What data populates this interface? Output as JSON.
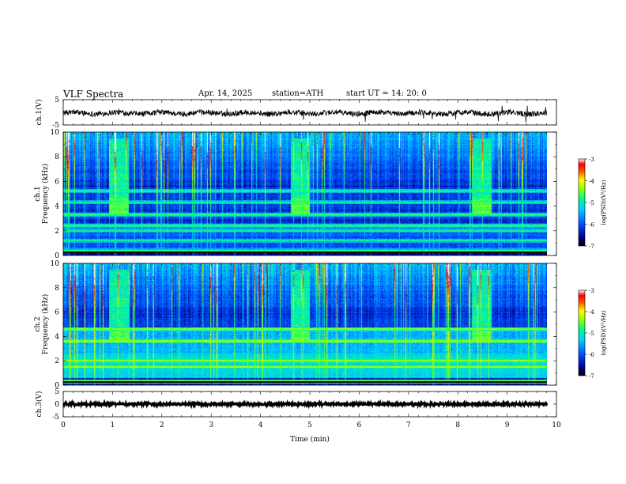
{
  "header": {
    "title": "VLF  Spectra",
    "date": "Apr. 14, 2025",
    "station": "station=ATH",
    "start_ut": "start  UT  =   14: 20: 0"
  },
  "chart_data": {
    "type": "heatmap",
    "xlabel": "Time  (min)",
    "xlim": [
      0,
      10
    ],
    "xticks": [
      "0",
      "1",
      "2",
      "3",
      "4",
      "5",
      "6",
      "7",
      "8",
      "9",
      "10"
    ],
    "panels": [
      {
        "id": "ch1-waveform",
        "type": "line",
        "ylabel": "ch.1(V)",
        "ylim": [
          -5,
          5
        ],
        "yticks": [
          "5",
          "-5"
        ],
        "color": "#000000"
      },
      {
        "id": "ch1-spectrogram",
        "type": "heatmap",
        "ylabel_line1": "ch.1",
        "ylabel_line2": "Frequency  (kHz)",
        "ylim": [
          0,
          10
        ],
        "yticks": [
          "0",
          "2",
          "4",
          "6",
          "8",
          "10"
        ],
        "colorbar": {
          "label": "log(PSD)(V²/Hz)",
          "range": [
            -7,
            -3
          ],
          "ticks": [
            "-3",
            "-4",
            "-5",
            "-6",
            "-7"
          ]
        },
        "bursts": [
          {
            "t_start": 0.95,
            "t_end": 1.35,
            "f_low": 3.4,
            "f_high": 4.6
          },
          {
            "t_start": 4.7,
            "t_end": 5.1,
            "f_low": 3.4,
            "f_high": 4.6
          },
          {
            "t_start": 8.45,
            "t_end": 8.85,
            "f_low": 3.4,
            "f_high": 4.6
          }
        ],
        "bands_khz": [
          0.4,
          1.2,
          2.0,
          2.4,
          3.3,
          4.3,
          5.2
        ]
      },
      {
        "id": "ch2-spectrogram",
        "type": "heatmap",
        "ylabel_line1": "ch.2",
        "ylabel_line2": "Frequency  (kHz)",
        "ylim": [
          0,
          10
        ],
        "yticks": [
          "0",
          "2",
          "4",
          "6",
          "8",
          "10"
        ],
        "colorbar": {
          "label": "log(PSD)(V²/Hz)",
          "range": [
            -7,
            -3
          ],
          "ticks": [
            "-3",
            "-4",
            "-5",
            "-6",
            "-7"
          ]
        },
        "bursts": [
          {
            "t_start": 0.95,
            "t_end": 1.35,
            "f_low": 3.5,
            "f_high": 4.5
          },
          {
            "t_start": 4.7,
            "t_end": 5.1,
            "f_low": 3.5,
            "f_high": 4.5
          },
          {
            "t_start": 8.45,
            "t_end": 8.85,
            "f_low": 3.5,
            "f_high": 4.5
          }
        ],
        "bands_khz": [
          0.3,
          1.5,
          2.0,
          3.6,
          4.6
        ]
      },
      {
        "id": "ch3-waveform",
        "type": "line",
        "ylabel": "ch.3(V)",
        "ylim": [
          -5,
          5
        ],
        "yticks": [
          "5",
          "0",
          "-5"
        ],
        "color": "#000000"
      }
    ]
  }
}
